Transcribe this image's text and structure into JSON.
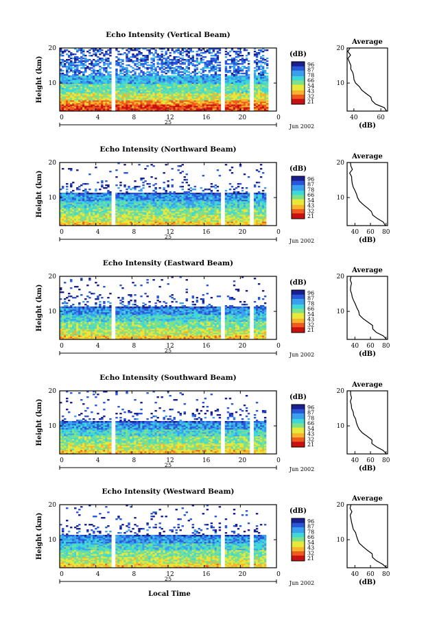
{
  "chart_data": {
    "type": "heatmap",
    "panels": [
      {
        "title": "Echo Intensity (Vertical Beam)"
      },
      {
        "title": "Echo Intensity (Northward Beam)"
      },
      {
        "title": "Echo Intensity (Eastward Beam)"
      },
      {
        "title": "Echo Intensity (Southward Beam)"
      },
      {
        "title": "Echo Intensity (Westward Beam)"
      }
    ],
    "ylabel": "Height (km)",
    "y_ticks": [
      "10",
      "20"
    ],
    "ylim": [
      2,
      20
    ],
    "x_ticks": [
      "0",
      "4",
      "8",
      "12",
      "16",
      "20",
      "0"
    ],
    "xlim": [
      0,
      24
    ],
    "day_label": "25",
    "date_label": "Jun 2002",
    "xlabel": "Local Time",
    "colorbar": {
      "unit": "(dB)",
      "labels": [
        "96",
        "87",
        "78",
        "66",
        "54",
        "43",
        "32",
        "21"
      ]
    },
    "average": {
      "title": "Average",
      "xlabel": "(dB)",
      "y_ticks": [
        "10",
        "20"
      ],
      "x_ticks_panel1": [
        "40",
        "60"
      ],
      "x_ticks": [
        "40",
        "60",
        "80"
      ],
      "profile_height_km": [
        2,
        3,
        4,
        5,
        6,
        7,
        8,
        9,
        10,
        11,
        12,
        13,
        14,
        15,
        16,
        17,
        18,
        19,
        20
      ],
      "profile_db": [
        80,
        76,
        68,
        62,
        62,
        56,
        50,
        46,
        44,
        42,
        40,
        38,
        37,
        36,
        35,
        34,
        36,
        34,
        35
      ]
    },
    "gaps_hours": [
      6.0,
      18.0,
      21.2
    ],
    "colors": [
      "#1a1f8f",
      "#2a56d8",
      "#3aa0ee",
      "#3fd8d8",
      "#7fe08a",
      "#e8e83c",
      "#f7b32b",
      "#ee5a1f",
      "#c81010"
    ]
  }
}
